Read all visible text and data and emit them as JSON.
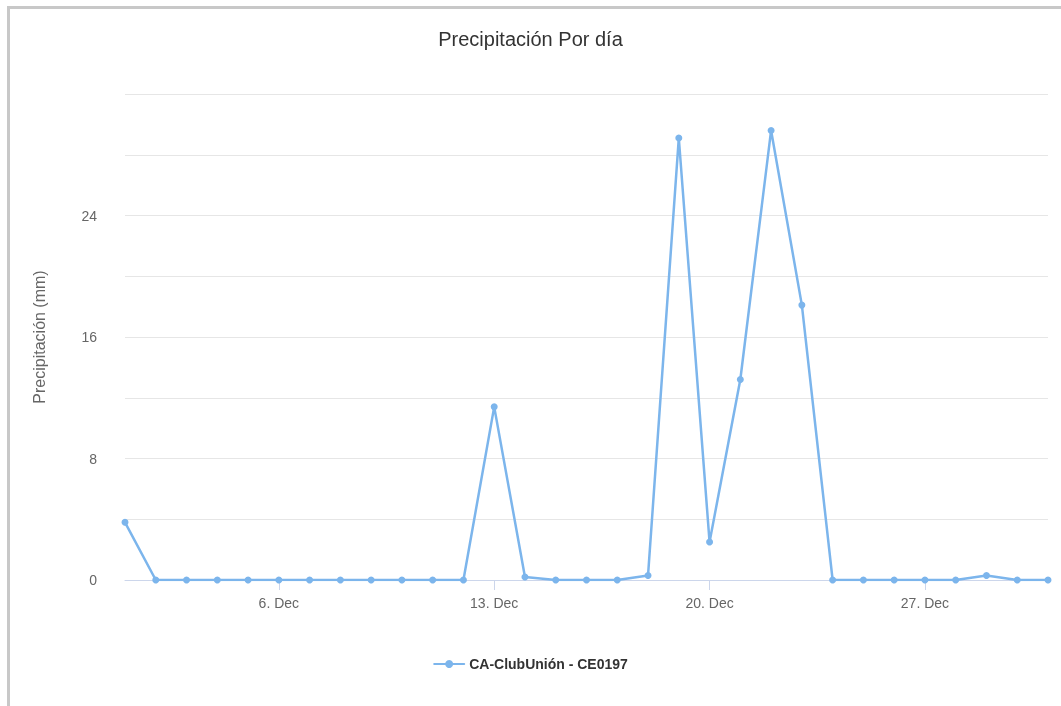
{
  "chart_data": {
    "type": "line",
    "title": "Precipitación Por día",
    "ylabel": "Precipitación (mm)",
    "x": [
      "--12-01",
      "--12-02",
      "--12-03",
      "--12-04",
      "--12-05",
      "--12-06",
      "--12-07",
      "--12-08",
      "--12-09",
      "--12-10",
      "--12-11",
      "--12-12",
      "--12-13",
      "--12-14",
      "--12-15",
      "--12-16",
      "--12-17",
      "--12-18",
      "--12-19",
      "--12-20",
      "--12-21",
      "--12-22",
      "--12-23",
      "--12-24",
      "--12-25",
      "--12-26",
      "--12-27",
      "--12-28",
      "--12-29",
      "--12-30",
      "--12-31"
    ],
    "series": [
      {
        "name": "CA-ClubUnión - CE0197",
        "color": "#7cb5ec",
        "values": [
          3.8,
          0,
          0,
          0,
          0,
          0,
          0,
          0,
          0,
          0,
          0,
          0,
          11.4,
          0.2,
          0,
          0,
          0,
          0.3,
          29.1,
          2.5,
          13.2,
          29.6,
          18.1,
          0,
          0,
          0,
          0,
          0,
          0.3,
          0,
          0
        ]
      }
    ],
    "xlim": [
      "--12-01",
      "--12-31"
    ],
    "xticks": [
      {
        "value": "--12-06",
        "label": "6. Dec"
      },
      {
        "value": "--12-13",
        "label": "13. Dec"
      },
      {
        "value": "--12-20",
        "label": "20. Dec"
      },
      {
        "value": "--12-27",
        "label": "27. Dec"
      }
    ],
    "ylim": [
      0,
      32
    ],
    "yticks": [
      0,
      {
        "value": 4,
        "label": null
      },
      8,
      {
        "value": 12,
        "label": null
      },
      16,
      {
        "value": 20,
        "label": null
      },
      24,
      {
        "value": 28,
        "label": null
      },
      {
        "value": 32,
        "label": null
      }
    ],
    "grid": "y",
    "legend": "bottom",
    "marker": "circle",
    "line_style": "solid"
  }
}
